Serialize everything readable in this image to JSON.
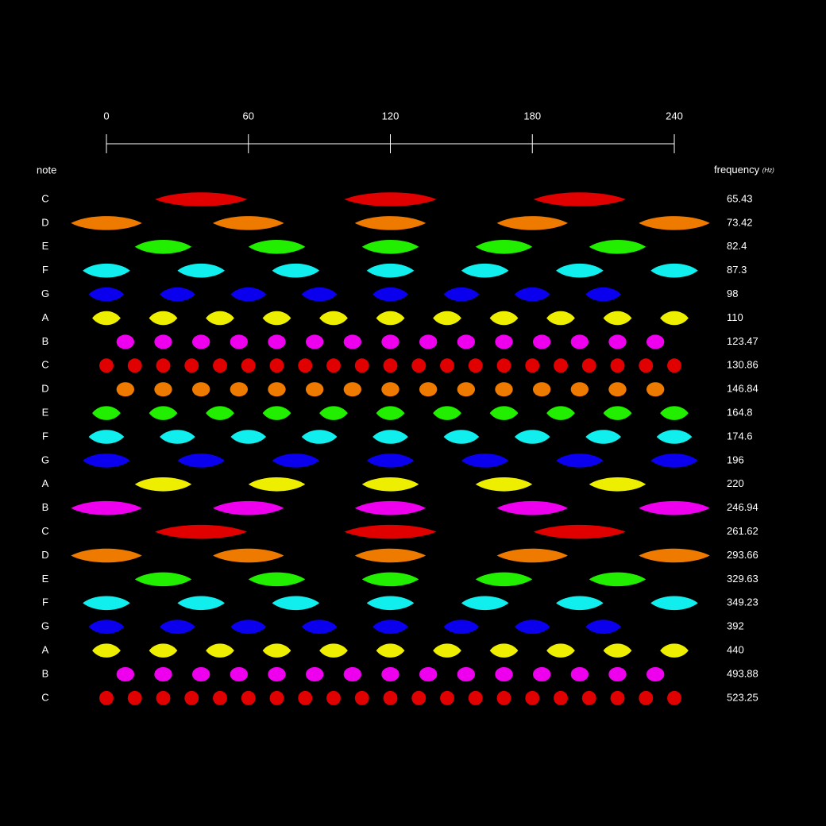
{
  "chart_data": {
    "type": "scatter",
    "row_label": "note",
    "value_label": "frequency",
    "value_unit": "(Hz)",
    "xlim": [
      0,
      240
    ],
    "xticks": [
      0,
      60,
      120,
      180,
      240
    ],
    "rows": [
      {
        "note": "C",
        "frequency": 65.43,
        "color": "#e00000",
        "width": 39,
        "x": [
          40,
          120,
          200
        ]
      },
      {
        "note": "D",
        "frequency": 73.42,
        "color": "#ee7a00",
        "width": 30,
        "x": [
          0,
          60,
          120,
          180,
          240
        ]
      },
      {
        "note": "E",
        "frequency": 82.4,
        "color": "#22ee00",
        "width": 24,
        "x": [
          24,
          72,
          120,
          168,
          216
        ]
      },
      {
        "note": "F",
        "frequency": 87.3,
        "color": "#11eeee",
        "width": 20,
        "x": [
          0,
          40,
          80,
          120,
          160,
          200,
          240
        ]
      },
      {
        "note": "G",
        "frequency": 98,
        "color": "#0a00ee",
        "width": 15,
        "x": [
          0,
          30,
          60,
          90,
          120,
          150,
          180,
          210
        ]
      },
      {
        "note": "A",
        "frequency": 110,
        "color": "#eeee00",
        "width": 12,
        "x": [
          0,
          24,
          48,
          72,
          96,
          120,
          144,
          168,
          192,
          216,
          240
        ]
      },
      {
        "note": "B",
        "frequency": 123.47,
        "color": "#ee00ee",
        "width": 7.5,
        "x": [
          8,
          24,
          40,
          56,
          72,
          88,
          104,
          120,
          136,
          152,
          168,
          184,
          200,
          216,
          232
        ]
      },
      {
        "note": "C",
        "frequency": 130.86,
        "color": "#e00000",
        "width": 6,
        "x": [
          0,
          12,
          24,
          36,
          48,
          60,
          72,
          84,
          96,
          108,
          120,
          132,
          144,
          156,
          168,
          180,
          192,
          204,
          216,
          228,
          240
        ]
      },
      {
        "note": "D",
        "frequency": 146.84,
        "color": "#ee7a00",
        "width": 7.5,
        "x": [
          8,
          24,
          40,
          56,
          72,
          88,
          104,
          120,
          136,
          152,
          168,
          184,
          200,
          216,
          232
        ]
      },
      {
        "note": "E",
        "frequency": 164.8,
        "color": "#22ee00",
        "width": 12,
        "x": [
          0,
          24,
          48,
          72,
          96,
          120,
          144,
          168,
          192,
          216,
          240
        ]
      },
      {
        "note": "F",
        "frequency": 174.6,
        "color": "#11eeee",
        "width": 15,
        "x": [
          0,
          30,
          60,
          90,
          120,
          150,
          180,
          210,
          240
        ]
      },
      {
        "note": "G",
        "frequency": 196,
        "color": "#0a00ee",
        "width": 20,
        "x": [
          0,
          40,
          80,
          120,
          160,
          200,
          240
        ]
      },
      {
        "note": "A",
        "frequency": 220,
        "color": "#eeee00",
        "width": 24,
        "x": [
          24,
          72,
          120,
          168,
          216
        ]
      },
      {
        "note": "B",
        "frequency": 246.94,
        "color": "#ee00ee",
        "width": 30,
        "x": [
          0,
          60,
          120,
          180,
          240
        ]
      },
      {
        "note": "C",
        "frequency": 261.62,
        "color": "#e00000",
        "width": 39,
        "x": [
          40,
          120,
          200
        ]
      },
      {
        "note": "D",
        "frequency": 293.66,
        "color": "#ee7a00",
        "width": 30,
        "x": [
          0,
          60,
          120,
          180,
          240
        ]
      },
      {
        "note": "E",
        "frequency": 329.63,
        "color": "#22ee00",
        "width": 24,
        "x": [
          24,
          72,
          120,
          168,
          216
        ]
      },
      {
        "note": "F",
        "frequency": 349.23,
        "color": "#11eeee",
        "width": 20,
        "x": [
          0,
          40,
          80,
          120,
          160,
          200,
          240
        ]
      },
      {
        "note": "G",
        "frequency": 392,
        "color": "#0a00ee",
        "width": 15,
        "x": [
          0,
          30,
          60,
          90,
          120,
          150,
          180,
          210
        ]
      },
      {
        "note": "A",
        "frequency": 440,
        "color": "#eeee00",
        "width": 12,
        "x": [
          0,
          24,
          48,
          72,
          96,
          120,
          144,
          168,
          192,
          216,
          240
        ]
      },
      {
        "note": "B",
        "frequency": 493.88,
        "color": "#ee00ee",
        "width": 7.5,
        "x": [
          8,
          24,
          40,
          56,
          72,
          88,
          104,
          120,
          136,
          152,
          168,
          184,
          200,
          216,
          232
        ]
      },
      {
        "note": "C",
        "frequency": 523.25,
        "color": "#e00000",
        "width": 6,
        "x": [
          0,
          12,
          24,
          36,
          48,
          60,
          72,
          84,
          96,
          108,
          120,
          132,
          144,
          156,
          168,
          180,
          192,
          204,
          216,
          228,
          240
        ]
      }
    ]
  }
}
